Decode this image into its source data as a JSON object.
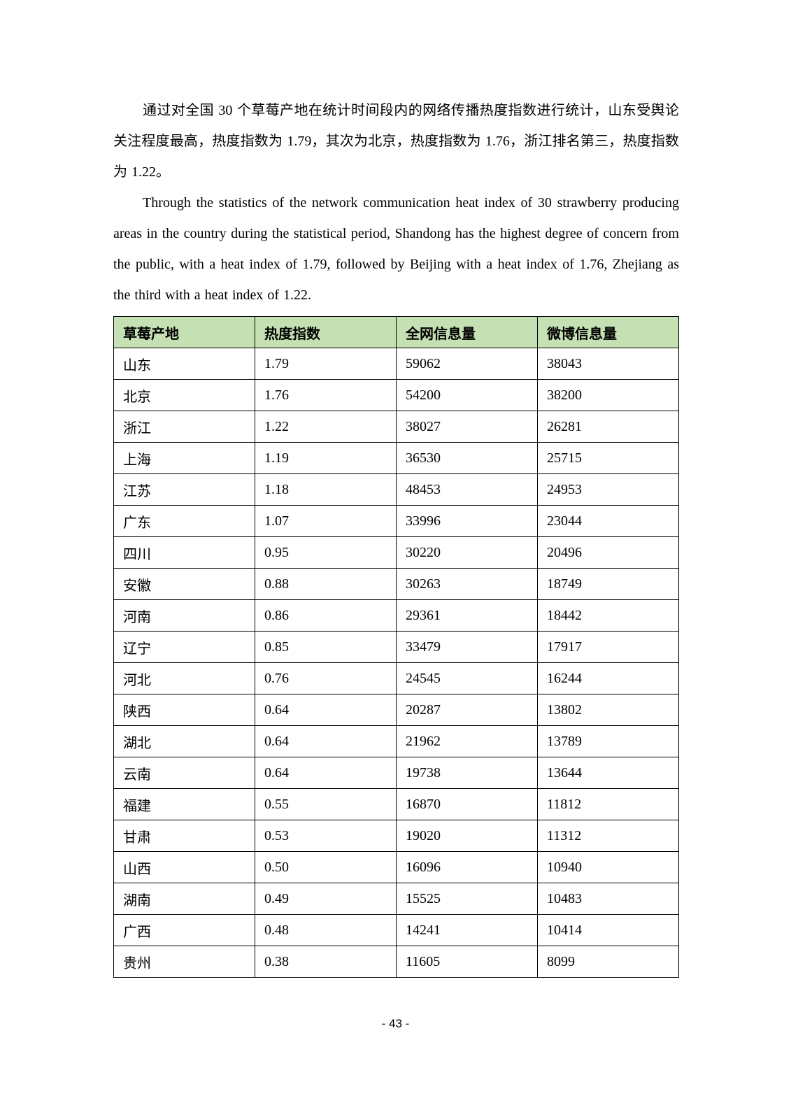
{
  "document": {
    "paragraph_zh": "通过对全国 30 个草莓产地在统计时间段内的网络传播热度指数进行统计，山东受舆论关注程度最高，热度指数为 1.79，其次为北京，热度指数为 1.76，浙江排名第三，热度指数为 1.22。",
    "paragraph_en": "Through the statistics of the network communication heat index of 30 strawberry producing areas in the country during the statistical period, Shandong has the highest degree of concern from the public, with a heat index of 1.79, followed by Beijing with a heat index of 1.76, Zhejiang as the third with a heat index of 1.22.",
    "page_number": "- 43 -"
  },
  "table": {
    "header_bg": "#c5e0b2",
    "border_color": "#000000",
    "headers": [
      "草莓产地",
      "热度指数",
      "全网信息量",
      "微博信息量"
    ],
    "rows": [
      [
        "山东",
        "1.79",
        "59062",
        "38043"
      ],
      [
        "北京",
        "1.76",
        "54200",
        "38200"
      ],
      [
        "浙江",
        "1.22",
        "38027",
        "26281"
      ],
      [
        "上海",
        "1.19",
        "36530",
        "25715"
      ],
      [
        "江苏",
        "1.18",
        "48453",
        "24953"
      ],
      [
        "广东",
        "1.07",
        "33996",
        "23044"
      ],
      [
        "四川",
        "0.95",
        "30220",
        "20496"
      ],
      [
        "安徽",
        "0.88",
        "30263",
        "18749"
      ],
      [
        "河南",
        "0.86",
        "29361",
        "18442"
      ],
      [
        "辽宁",
        "0.85",
        "33479",
        "17917"
      ],
      [
        "河北",
        "0.76",
        "24545",
        "16244"
      ],
      [
        "陕西",
        "0.64",
        "20287",
        "13802"
      ],
      [
        "湖北",
        "0.64",
        "21962",
        "13789"
      ],
      [
        "云南",
        "0.64",
        "19738",
        "13644"
      ],
      [
        "福建",
        "0.55",
        "16870",
        "11812"
      ],
      [
        "甘肃",
        "0.53",
        "19020",
        "11312"
      ],
      [
        "山西",
        "0.50",
        "16096",
        "10940"
      ],
      [
        "湖南",
        "0.49",
        "15525",
        "10483"
      ],
      [
        "广西",
        "0.48",
        "14241",
        "10414"
      ],
      [
        "贵州",
        "0.38",
        "11605",
        "8099"
      ]
    ]
  }
}
